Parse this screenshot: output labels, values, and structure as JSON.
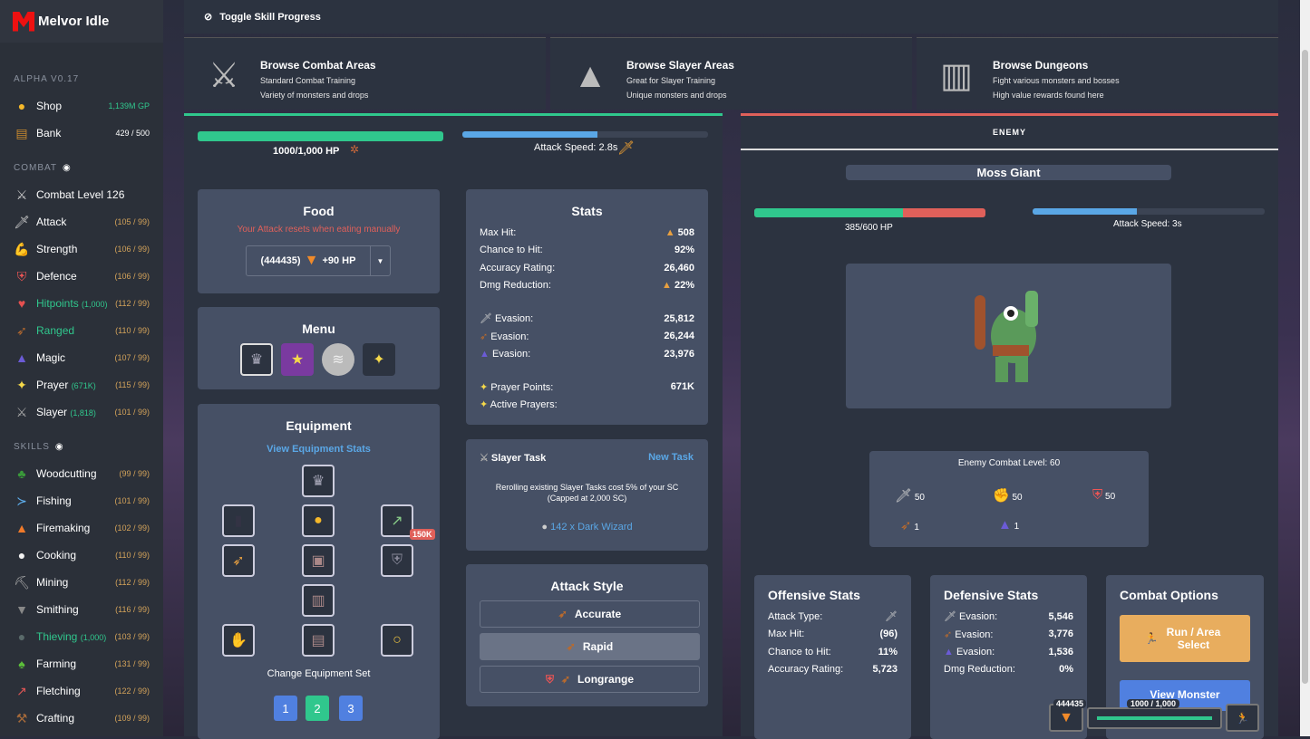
{
  "app": {
    "title": "Melvor Idle",
    "version": "ALPHA V0.17"
  },
  "sidebar": {
    "shop": {
      "label": "Shop",
      "gp": "1,139M GP"
    },
    "bank": {
      "label": "Bank",
      "count": "429 / 500"
    },
    "combat_header": "COMBAT",
    "combat_level": "Combat Level 126",
    "combat": [
      {
        "label": "Attack",
        "extra": "",
        "level": "(105 / 99)",
        "icon": "sword-icon",
        "glyph": "🗡",
        "color": "#ccc",
        "active": false
      },
      {
        "label": "Strength",
        "extra": "",
        "level": "(106 / 99)",
        "icon": "strength-icon",
        "glyph": "💪",
        "color": "#f3c9a0",
        "active": false
      },
      {
        "label": "Defence",
        "extra": "",
        "level": "(106 / 99)",
        "icon": "shield-icon",
        "glyph": "⛨",
        "color": "#e55",
        "active": false
      },
      {
        "label": "Hitpoints",
        "extra": "(1,000)",
        "level": "(112 / 99)",
        "icon": "heart-icon",
        "glyph": "♥",
        "color": "#e55050",
        "active": true
      },
      {
        "label": "Ranged",
        "extra": "",
        "level": "(110 / 99)",
        "icon": "bow-icon",
        "glyph": "➶",
        "color": "#b86a2e",
        "active": true
      },
      {
        "label": "Magic",
        "extra": "",
        "level": "(107 / 99)",
        "icon": "wizard-hat-icon",
        "glyph": "▲",
        "color": "#6b5bd6",
        "active": false
      },
      {
        "label": "Prayer",
        "extra": "(671K)",
        "level": "(115 / 99)",
        "icon": "prayer-star-icon",
        "glyph": "✦",
        "color": "#f5d94a",
        "active": false
      },
      {
        "label": "Slayer",
        "extra": "(1,818)",
        "level": "(101 / 99)",
        "icon": "slayer-icon",
        "glyph": "⚔",
        "color": "#aaa",
        "active": false
      }
    ],
    "skills_header": "SKILLS",
    "skills": [
      {
        "label": "Woodcutting",
        "extra": "",
        "level": "(99 / 99)",
        "icon": "tree-icon",
        "glyph": "♣",
        "color": "#3a9a3a",
        "active": false
      },
      {
        "label": "Fishing",
        "extra": "",
        "level": "(101 / 99)",
        "icon": "fish-icon",
        "glyph": "≻",
        "color": "#5fb0f0",
        "active": false
      },
      {
        "label": "Firemaking",
        "extra": "",
        "level": "(102 / 99)",
        "icon": "campfire-icon",
        "glyph": "▲",
        "color": "#f07a2a",
        "active": false
      },
      {
        "label": "Cooking",
        "extra": "",
        "level": "(110 / 99)",
        "icon": "chef-hat-icon",
        "glyph": "●",
        "color": "#f2f2f2",
        "active": false
      },
      {
        "label": "Mining",
        "extra": "",
        "level": "(112 / 99)",
        "icon": "pickaxe-icon",
        "glyph": "⛏",
        "color": "#aaa",
        "active": false
      },
      {
        "label": "Smithing",
        "extra": "",
        "level": "(116 / 99)",
        "icon": "anvil-icon",
        "glyph": "▼",
        "color": "#888",
        "active": false
      },
      {
        "label": "Thieving",
        "extra": "(1,000)",
        "level": "(103 / 99)",
        "icon": "thief-icon",
        "glyph": "●",
        "color": "#5a6a6a",
        "active": true
      },
      {
        "label": "Farming",
        "extra": "",
        "level": "(131 / 99)",
        "icon": "sprout-icon",
        "glyph": "♠",
        "color": "#5cbf3a",
        "active": false
      },
      {
        "label": "Fletching",
        "extra": "",
        "level": "(122 / 99)",
        "icon": "arrows-icon",
        "glyph": "↗",
        "color": "#d55",
        "active": false
      },
      {
        "label": "Crafting",
        "extra": "",
        "level": "(109 / 99)",
        "icon": "tools-icon",
        "glyph": "⚒",
        "color": "#a66a3a",
        "active": false
      }
    ]
  },
  "topbar": {
    "toggle_label": "Toggle Skill Progress"
  },
  "areas": [
    {
      "title": "Browse Combat Areas",
      "line1": "Standard Combat Training",
      "line2": "Variety of monsters and drops",
      "icon": "crossed-swords-icon",
      "glyph": "⚔"
    },
    {
      "title": "Browse Slayer Areas",
      "line1": "Great for Slayer Training",
      "line2": "Unique monsters and drops",
      "icon": "sword-in-stone-icon",
      "glyph": "▲"
    },
    {
      "title": "Browse Dungeons",
      "line1": "Fight various monsters and bosses",
      "line2": "High value rewards found here",
      "icon": "dungeon-door-icon",
      "glyph": "▥"
    }
  ],
  "player": {
    "hp_text": "1000/1,000 HP",
    "hp_fraction": 1.0,
    "attack_speed": "Attack Speed: 2.8s",
    "attack_progress": 0.55,
    "food": {
      "title": "Food",
      "warning": "Your Attack resets when eating manually",
      "qty": "(444435)",
      "heal": "+90 HP"
    },
    "menu": {
      "title": "Menu"
    },
    "equipment": {
      "title": "Equipment",
      "link": "View Equipment Stats",
      "badge": "150K",
      "change_set": "Change Equipment Set",
      "sets": [
        "1",
        "2",
        "3"
      ]
    },
    "stats": {
      "title": "Stats",
      "rows": [
        {
          "label": "Max Hit:",
          "value": "508"
        },
        {
          "label": "Chance to Hit:",
          "value": "92%"
        },
        {
          "label": "Accuracy Rating:",
          "value": "26,460"
        },
        {
          "label": "Dmg Reduction:",
          "value": "22%"
        }
      ],
      "evasion": [
        {
          "label": "Evasion:",
          "value": "25,812"
        },
        {
          "label": "Evasion:",
          "value": "26,244"
        },
        {
          "label": "Evasion:",
          "value": "23,976"
        }
      ],
      "prayer_points": {
        "label": "Prayer Points:",
        "value": "671K"
      },
      "active_prayers": {
        "label": "Active Prayers:"
      }
    },
    "slayer": {
      "title": "Slayer Task",
      "new_task": "New Task",
      "info1": "Rerolling existing Slayer Tasks cost 5% of your SC",
      "info2": "(Capped at 2,000 SC)",
      "task": "142 x Dark Wizard"
    },
    "attack_style": {
      "title": "Attack Style",
      "options": [
        "Accurate",
        "Rapid",
        "Longrange"
      ],
      "selected": "Rapid"
    }
  },
  "enemy": {
    "header": "ENEMY",
    "name": "Moss Giant",
    "hp_text": "385/600 HP",
    "hp_fraction": 0.642,
    "attack_speed": "Attack Speed: 3s",
    "attack_progress": 0.45,
    "combat_level": "Enemy Combat Level: 60",
    "levels": {
      "attack": "50",
      "strength": "50",
      "defence": "50",
      "ranged": "1",
      "magic": "1"
    },
    "offensive": {
      "title": "Offensive Stats",
      "attack_type": "Attack Type:",
      "max_hit": {
        "label": "Max Hit:",
        "value": "(96)"
      },
      "chance": {
        "label": "Chance to Hit:",
        "value": "11%"
      },
      "accuracy": {
        "label": "Accuracy Rating:",
        "value": "5,723"
      }
    },
    "defensive": {
      "title": "Defensive Stats",
      "evasion": [
        {
          "label": "Evasion:",
          "value": "5,546"
        },
        {
          "label": "Evasion:",
          "value": "3,776"
        },
        {
          "label": "Evasion:",
          "value": "1,536"
        }
      ],
      "dmg": {
        "label": "Dmg Reduction:",
        "value": "0%"
      }
    },
    "options": {
      "title": "Combat Options",
      "run": "Run / Area Select",
      "view": "View Monster"
    }
  },
  "quickbar": {
    "food_qty": "444435",
    "hp": "1000 / 1,000",
    "hp_fraction": 1.0
  },
  "colors": {
    "hp": "#30c78d",
    "enemy_hp_lost": "#e0605a",
    "attack_bar": "#5aa7e6",
    "run_button": "#e8ad5e",
    "view_button": "#5080e0"
  }
}
